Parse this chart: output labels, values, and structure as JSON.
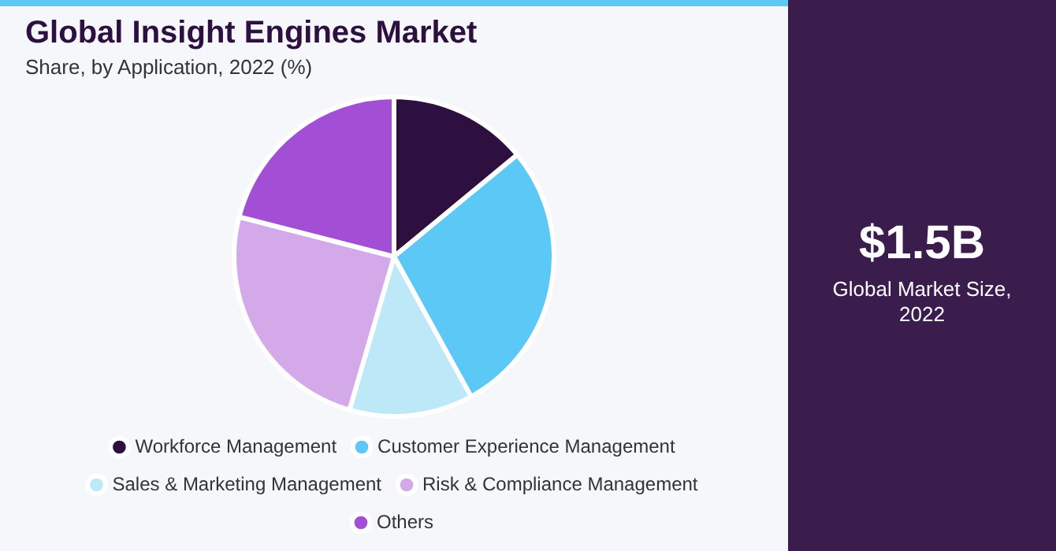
{
  "chart_data": {
    "type": "pie",
    "title": "Global Insight Engines Market",
    "subtitle": "Share, by Application, 2022 (%)",
    "categories": [
      "Workforce Management",
      "Customer Experience Management",
      "Sales & Marketing Management",
      "Risk & Compliance Management",
      "Others"
    ],
    "values": [
      14,
      28,
      12.5,
      24.5,
      21
    ],
    "colors": [
      "#2d1040",
      "#5bc8f5",
      "#bde8f7",
      "#d4a9ea",
      "#a24fd6"
    ],
    "legend": "bottom",
    "annotations": [
      "$1.5B",
      "Global Market Size, 2022"
    ]
  }
}
